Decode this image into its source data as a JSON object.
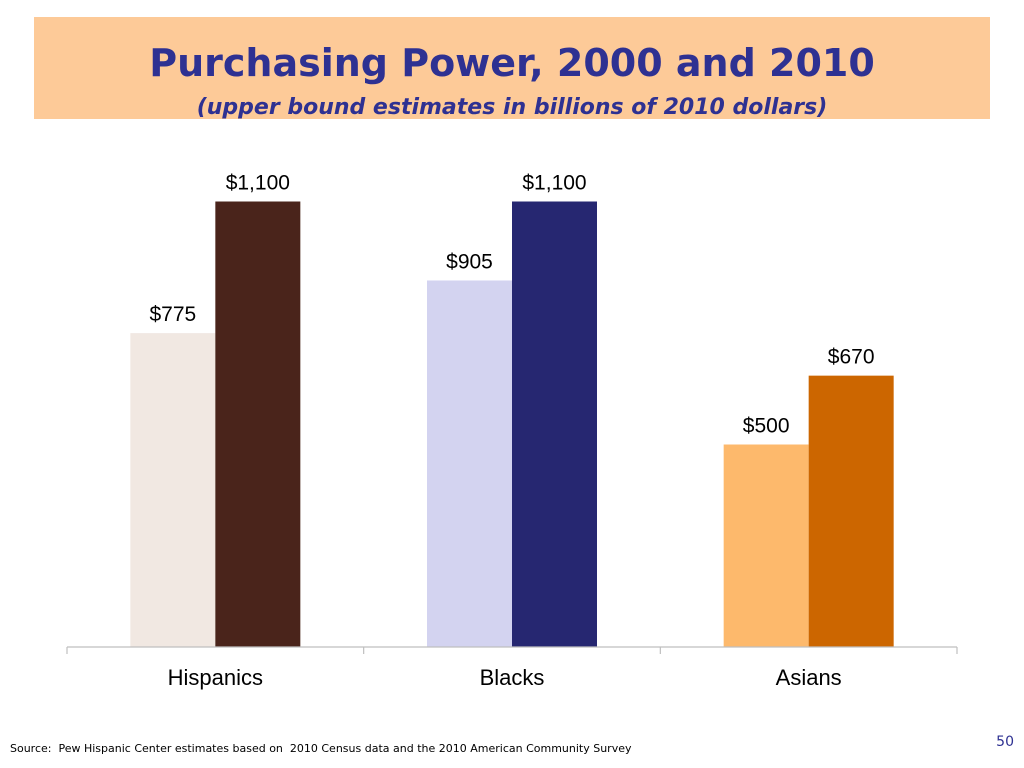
{
  "slide": {
    "title": "Purchasing Power, 2000 and 2010",
    "subtitle": "(upper bound estimates in billions of 2010 dollars)",
    "source": "Source:  Pew Hispanic Center estimates based on  2010 Census data and the 2010 American Community Survey",
    "page_number": "50"
  },
  "chart_data": {
    "type": "bar",
    "title": "Purchasing Power, 2000 and 2010",
    "subtitle": "(upper bound estimates in billions of 2010 dollars)",
    "categories": [
      "Hispanics",
      "Blacks",
      "Asians"
    ],
    "series": [
      {
        "values": [
          775,
          905,
          500
        ]
      },
      {
        "values": [
          1100,
          1100,
          670
        ]
      }
    ],
    "data_labels": [
      [
        "$775",
        "$1,100"
      ],
      [
        "$905",
        "$1,100"
      ],
      [
        "$500",
        "$670"
      ]
    ],
    "bar_colors": [
      [
        "#f1e8e2",
        "#4a241b"
      ],
      [
        "#d3d3f0",
        "#262771"
      ],
      [
        "#fdb96c",
        "#cc6600"
      ]
    ],
    "ylim": [
      0,
      1200
    ],
    "xlabel": "",
    "ylabel": "",
    "grid": false,
    "legend": "none"
  }
}
